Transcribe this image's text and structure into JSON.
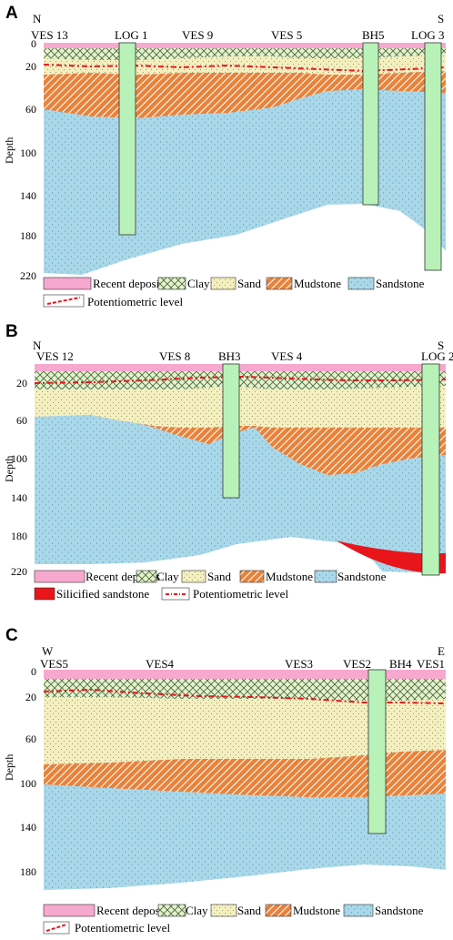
{
  "panels": [
    {
      "letter": "A",
      "north_label": "N",
      "south_label": "S",
      "axis_label": "Depth",
      "depth_ticks": [
        "0",
        "20",
        "60",
        "100",
        "140",
        "180",
        "220"
      ],
      "stations": [
        "VES 13",
        "LOG 1",
        "VES 9",
        "VES 5",
        "BH5",
        "LOG 3"
      ],
      "legend": [
        "Recent deposits",
        "Clay",
        "Sand",
        "Mudstone",
        "Sandstone"
      ],
      "legend_line": "Potentiometric level"
    },
    {
      "letter": "B",
      "north_label": "N",
      "south_label": "S",
      "axis_label": "Depth",
      "depth_ticks": [
        "20",
        "60",
        "100",
        "140",
        "180",
        "220"
      ],
      "stations": [
        "VES 12",
        "VES 8",
        "BH3",
        "VES 4",
        "LOG 2"
      ],
      "legend": [
        "Recent deposits",
        "Clay",
        "Sand",
        "Mudstone",
        "Sandstone",
        "Silicified sandstone"
      ],
      "legend_line": "Potentiometric level"
    },
    {
      "letter": "C",
      "north_label": "W",
      "south_label": "E",
      "axis_label": "Depth",
      "depth_ticks": [
        "0",
        "20",
        "60",
        "100",
        "140",
        "180"
      ],
      "stations": [
        "VES5",
        "VES4",
        "VES3",
        "VES2",
        "BH4",
        "VES1"
      ],
      "legend": [
        "Recent deposits",
        "Clay",
        "Sand",
        "Mudstone",
        "Sandstone"
      ],
      "legend_line": "Potentiometric level"
    }
  ],
  "colors": {
    "recent": "#f7a8cf",
    "clay": "#d9ecc1",
    "sand": "#f3efbf",
    "mudstone": "#e9823a",
    "sandstone": "#a9d8ea",
    "silicified": "#e8151b",
    "borehole": "#b8f2b8",
    "potentiometric": "#e8151b"
  }
}
